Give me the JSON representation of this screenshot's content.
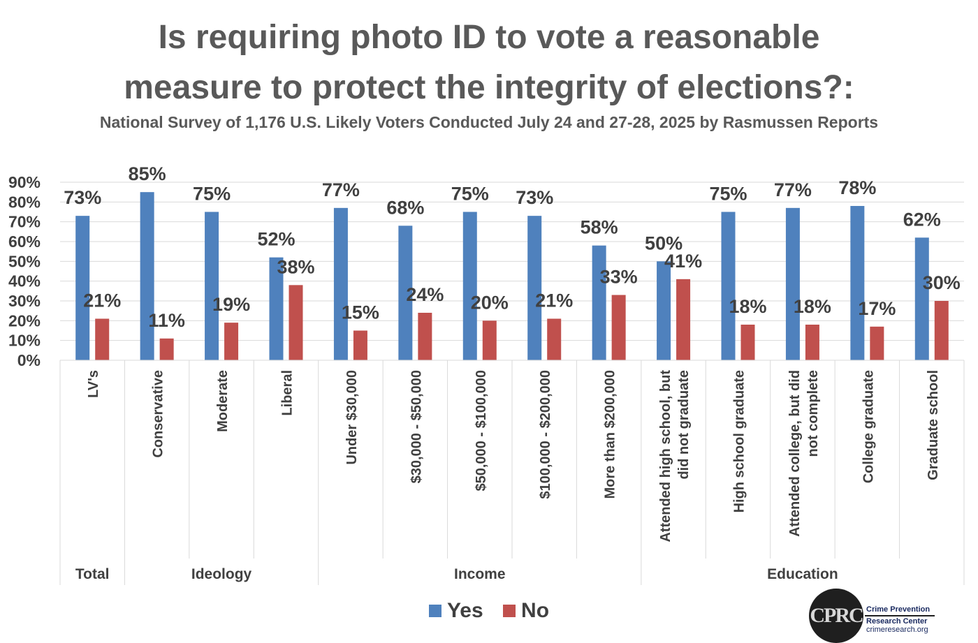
{
  "title_line1": "Is requiring photo ID to vote a reasonable",
  "title_line2": "measure to protect the integrity of elections?:",
  "subtitle": "National Survey of 1,176 U.S. Likely Voters Conducted July 24 and 27-28, 2025 by Rasmussen Reports",
  "legend": {
    "yes": "Yes",
    "no": "No"
  },
  "logo": {
    "mark": "CPRC",
    "name_line1": "Crime Prevention",
    "name_line2": "Research Center",
    "url": "crimeresearch.org"
  },
  "chart_data": {
    "type": "bar",
    "ylim": [
      0,
      90
    ],
    "yticks": [
      "0%",
      "10%",
      "20%",
      "30%",
      "40%",
      "50%",
      "60%",
      "70%",
      "80%",
      "90%"
    ],
    "grid": true,
    "legend_position": "bottom",
    "categories": [
      [
        "LV's"
      ],
      [
        "Conservative"
      ],
      [
        "Moderate"
      ],
      [
        "Liberal"
      ],
      [
        "Under $30,000"
      ],
      [
        "$30,000 - $50,000"
      ],
      [
        "$50,000 - $100,000"
      ],
      [
        "$100,000 - $200,000"
      ],
      [
        "More than $200,000"
      ],
      [
        "Attended high school, but",
        "did not graduate"
      ],
      [
        "High school graduate"
      ],
      [
        "Attended college, but did",
        "not complete"
      ],
      [
        "College graduate"
      ],
      [
        "Graduate school"
      ]
    ],
    "groups": [
      {
        "name": "Total",
        "count": 1
      },
      {
        "name": "Ideology",
        "count": 3
      },
      {
        "name": "Income",
        "count": 5
      },
      {
        "name": "Education",
        "count": 5
      }
    ],
    "series": [
      {
        "name": "Yes",
        "color": "#4f81bd",
        "values": [
          73,
          85,
          75,
          52,
          77,
          68,
          75,
          73,
          58,
          50,
          75,
          77,
          78,
          62
        ]
      },
      {
        "name": "No",
        "color": "#c0504d",
        "values": [
          21,
          11,
          19,
          38,
          15,
          24,
          20,
          21,
          33,
          41,
          18,
          18,
          17,
          30
        ]
      }
    ]
  }
}
